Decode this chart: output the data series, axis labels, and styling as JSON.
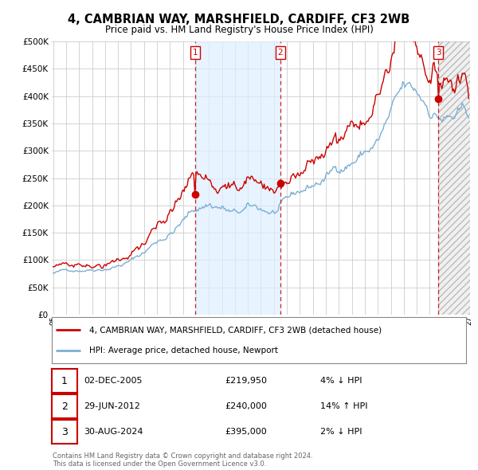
{
  "title": "4, CAMBRIAN WAY, MARSHFIELD, CARDIFF, CF3 2WB",
  "subtitle": "Price paid vs. HM Land Registry's House Price Index (HPI)",
  "legend_line1": "4, CAMBRIAN WAY, MARSHFIELD, CARDIFF, CF3 2WB (detached house)",
  "legend_line2": "HPI: Average price, detached house, Newport",
  "transactions": [
    {
      "num": 1,
      "date": "02-DEC-2005",
      "price": "£219,950",
      "hpi": "4% ↓ HPI",
      "year": 2005.92
    },
    {
      "num": 2,
      "date": "29-JUN-2012",
      "price": "£240,000",
      "hpi": "14% ↑ HPI",
      "year": 2012.5
    },
    {
      "num": 3,
      "date": "30-AUG-2024",
      "price": "£395,000",
      "hpi": "2% ↓ HPI",
      "year": 2024.67
    }
  ],
  "footer": "Contains HM Land Registry data © Crown copyright and database right 2024.\nThis data is licensed under the Open Government Licence v3.0.",
  "hpi_color": "#7bafd4",
  "price_color": "#cc0000",
  "vline_color": "#cc0000",
  "fill_color": "#ddeeff",
  "background_color": "#ffffff",
  "grid_color": "#cccccc",
  "ylim": [
    0,
    500000
  ],
  "yticks": [
    0,
    50000,
    100000,
    150000,
    200000,
    250000,
    300000,
    350000,
    400000,
    450000,
    500000
  ],
  "xmin": 1995.0,
  "xmax": 2027.0
}
